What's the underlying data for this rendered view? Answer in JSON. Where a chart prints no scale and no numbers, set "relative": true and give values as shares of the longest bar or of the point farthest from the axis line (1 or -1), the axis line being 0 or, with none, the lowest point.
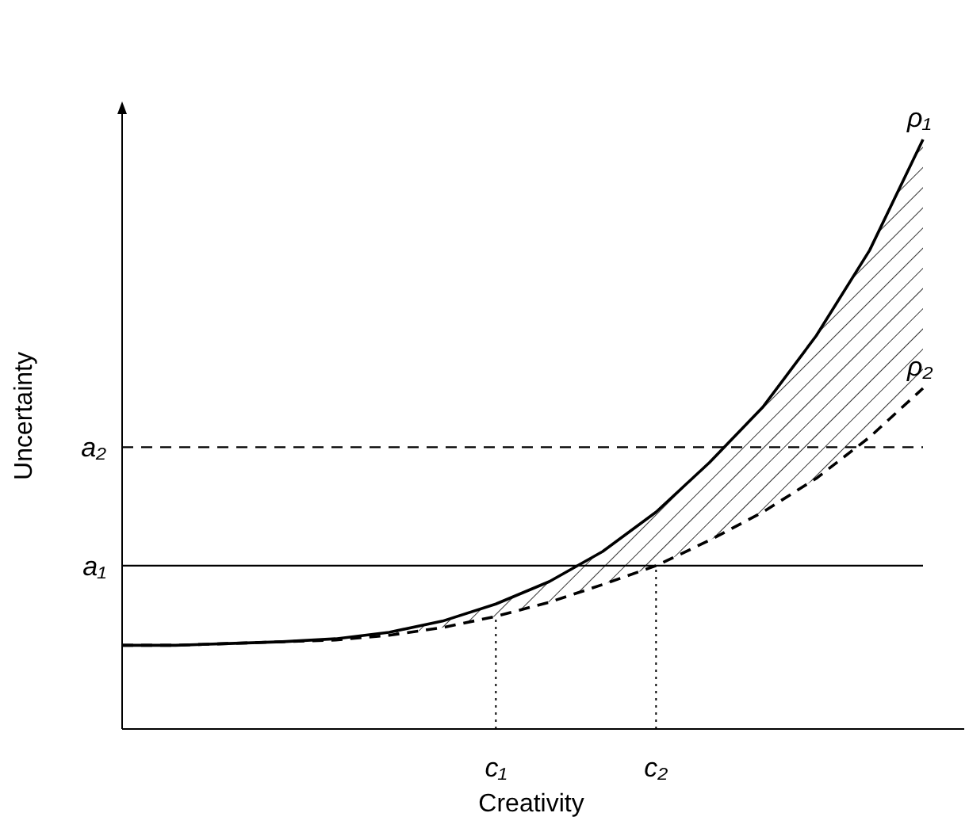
{
  "chart_data": {
    "type": "line",
    "relative": true,
    "xlabel": "Creativity",
    "ylabel": "Uncertainty",
    "categories": [
      null,
      null,
      null,
      null,
      null,
      null,
      null,
      "c₁",
      null,
      null,
      "c₂",
      null,
      null,
      null,
      null,
      null
    ],
    "series": [
      {
        "name": "ρ₁",
        "color": "#000000",
        "line_style": "solid",
        "values": [
          0.142,
          0.142,
          0.145,
          0.148,
          0.153,
          0.164,
          0.183,
          0.212,
          0.25,
          0.301,
          0.368,
          0.452,
          0.546,
          0.667,
          0.812,
          1
        ],
        "upper": [
          0.142,
          0.142,
          0.145,
          0.148,
          0.153,
          0.164,
          0.183,
          0.212,
          0.25,
          0.301,
          0.368,
          0.452,
          0.546,
          0.667,
          0.812,
          1
        ],
        "lower": [
          0.142,
          0.142,
          0.145,
          0.148,
          0.151,
          0.159,
          0.172,
          0.191,
          0.215,
          0.245,
          0.277,
          0.32,
          0.368,
          0.425,
          0.495,
          0.578
        ]
      },
      {
        "name": "ρ₂",
        "color": "#000000",
        "line_style": "dashed",
        "values": [
          0.142,
          0.142,
          0.145,
          0.148,
          0.151,
          0.159,
          0.172,
          0.191,
          0.215,
          0.245,
          0.277,
          0.32,
          0.368,
          0.425,
          0.495,
          0.578
        ]
      }
    ],
    "ref_lines": [
      {
        "axis": "y",
        "value": 0.277,
        "label": "a₁",
        "line_style": "solid",
        "color": "#000000"
      },
      {
        "axis": "y",
        "value": 0.478,
        "label": "a₂",
        "line_style": "dashed",
        "color": "#000000"
      },
      {
        "axis": "x",
        "value": "c₁",
        "line_style": "dotted",
        "color": "#000000"
      },
      {
        "axis": "x",
        "value": "c₂",
        "line_style": "dotted",
        "color": "#000000"
      }
    ]
  }
}
